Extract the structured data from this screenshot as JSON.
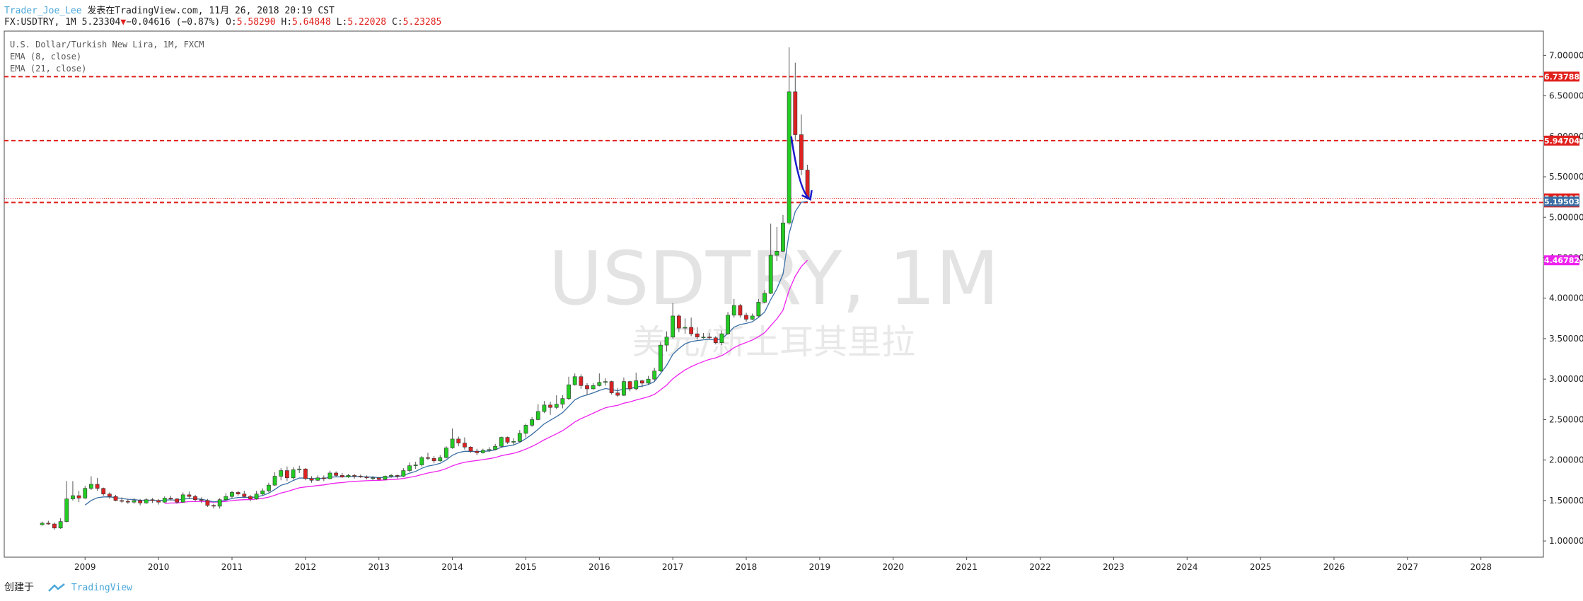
{
  "header": {
    "author": "Trader_Joe_Lee",
    "published": "发表在TradingView.com, 11月 26, 2018 20:19 CST",
    "symbol": "FX:USDTRY, 1M",
    "last": "5.23304",
    "change": "−0.04616 (−0.87%)",
    "o_label": "O:",
    "o": "5.58290",
    "h_label": "H:",
    "h": "5.64848",
    "l_label": "L:",
    "l": "5.22028",
    "c_label": "C:",
    "c": "5.23285"
  },
  "legend": {
    "title": "U.S. Dollar/Turkish New Lira, 1M, FXCM",
    "ema8": "EMA (8, close)",
    "ema21": "EMA (21, close)"
  },
  "watermark": {
    "main": "USDTRY, 1M",
    "sub": "美元/新土耳其里拉"
  },
  "footer": {
    "created": "创建于",
    "brand": "TradingView"
  },
  "colors": {
    "up": "#22cc22",
    "down": "#dd2222",
    "ema8": "#3a6ea5",
    "ema21": "#ee22ee",
    "level": "#e0201c",
    "arrow": "#1a1acc"
  },
  "chart_data": {
    "type": "candlestick",
    "xlabel": "",
    "ylabel": "",
    "x_ticks": [
      "2009",
      "2010",
      "2011",
      "2012",
      "2013",
      "2014",
      "2015",
      "2016",
      "2017",
      "2018",
      "2019",
      "2020",
      "2021",
      "2022",
      "2023",
      "2024",
      "2025",
      "2026",
      "2027",
      "2028"
    ],
    "y_ticks": [
      "1.00000",
      "1.50000",
      "2.00000",
      "2.50000",
      "3.00000",
      "3.50000",
      "4.00000",
      "4.50000",
      "5.00000",
      "5.50000",
      "6.00000",
      "6.50000",
      "7.00000"
    ],
    "ylim": [
      0.8,
      7.3
    ],
    "xlim_years": [
      2007.9,
      2028.85
    ],
    "levels": [
      {
        "value": 6.73788,
        "label": "6.73788",
        "style": "dashed"
      },
      {
        "value": 5.94704,
        "label": "5.94704",
        "style": "dashed"
      },
      {
        "value": 5.18286,
        "label": "5.18286",
        "style": "dashed"
      },
      {
        "value": 5.23285,
        "label": "5.23285",
        "style": "dotted"
      }
    ],
    "price_tags": [
      {
        "value": 5.19503,
        "label": "5.19503",
        "color": "#3a6ea5"
      },
      {
        "value": 4.46782,
        "label": "4.46782",
        "color": "#ee22ee"
      }
    ],
    "candles": [
      {
        "t": "2008-06",
        "o": 1.2,
        "h": 1.24,
        "l": 1.19,
        "c": 1.22
      },
      {
        "t": "2008-07",
        "o": 1.22,
        "h": 1.25,
        "l": 1.2,
        "c": 1.21
      },
      {
        "t": "2008-08",
        "o": 1.21,
        "h": 1.23,
        "l": 1.14,
        "c": 1.16
      },
      {
        "t": "2008-09",
        "o": 1.16,
        "h": 1.28,
        "l": 1.15,
        "c": 1.24
      },
      {
        "t": "2008-10",
        "o": 1.24,
        "h": 1.74,
        "l": 1.23,
        "c": 1.52
      },
      {
        "t": "2008-11",
        "o": 1.52,
        "h": 1.74,
        "l": 1.5,
        "c": 1.56
      },
      {
        "t": "2008-12",
        "o": 1.56,
        "h": 1.62,
        "l": 1.48,
        "c": 1.53
      },
      {
        "t": "2009-01",
        "o": 1.53,
        "h": 1.68,
        "l": 1.52,
        "c": 1.65
      },
      {
        "t": "2009-02",
        "o": 1.65,
        "h": 1.8,
        "l": 1.63,
        "c": 1.7
      },
      {
        "t": "2009-03",
        "o": 1.7,
        "h": 1.78,
        "l": 1.62,
        "c": 1.65
      },
      {
        "t": "2009-04",
        "o": 1.65,
        "h": 1.66,
        "l": 1.56,
        "c": 1.58
      },
      {
        "t": "2009-05",
        "o": 1.58,
        "h": 1.6,
        "l": 1.52,
        "c": 1.55
      },
      {
        "t": "2009-06",
        "o": 1.55,
        "h": 1.57,
        "l": 1.49,
        "c": 1.5
      },
      {
        "t": "2009-07",
        "o": 1.5,
        "h": 1.54,
        "l": 1.47,
        "c": 1.49
      },
      {
        "t": "2009-08",
        "o": 1.49,
        "h": 1.52,
        "l": 1.46,
        "c": 1.48
      },
      {
        "t": "2009-09",
        "o": 1.48,
        "h": 1.53,
        "l": 1.46,
        "c": 1.5
      },
      {
        "t": "2009-10",
        "o": 1.5,
        "h": 1.52,
        "l": 1.44,
        "c": 1.47
      },
      {
        "t": "2009-11",
        "o": 1.47,
        "h": 1.53,
        "l": 1.46,
        "c": 1.51
      },
      {
        "t": "2009-12",
        "o": 1.51,
        "h": 1.53,
        "l": 1.47,
        "c": 1.5
      },
      {
        "t": "2010-01",
        "o": 1.5,
        "h": 1.52,
        "l": 1.45,
        "c": 1.48
      },
      {
        "t": "2010-02",
        "o": 1.48,
        "h": 1.55,
        "l": 1.47,
        "c": 1.53
      },
      {
        "t": "2010-03",
        "o": 1.53,
        "h": 1.56,
        "l": 1.5,
        "c": 1.52
      },
      {
        "t": "2010-04",
        "o": 1.52,
        "h": 1.53,
        "l": 1.46,
        "c": 1.48
      },
      {
        "t": "2010-05",
        "o": 1.48,
        "h": 1.6,
        "l": 1.47,
        "c": 1.57
      },
      {
        "t": "2010-06",
        "o": 1.57,
        "h": 1.61,
        "l": 1.52,
        "c": 1.55
      },
      {
        "t": "2010-07",
        "o": 1.55,
        "h": 1.57,
        "l": 1.49,
        "c": 1.51
      },
      {
        "t": "2010-08",
        "o": 1.51,
        "h": 1.54,
        "l": 1.47,
        "c": 1.5
      },
      {
        "t": "2010-09",
        "o": 1.5,
        "h": 1.52,
        "l": 1.42,
        "c": 1.44
      },
      {
        "t": "2010-10",
        "o": 1.44,
        "h": 1.46,
        "l": 1.4,
        "c": 1.43
      },
      {
        "t": "2010-11",
        "o": 1.43,
        "h": 1.53,
        "l": 1.4,
        "c": 1.51
      },
      {
        "t": "2010-12",
        "o": 1.51,
        "h": 1.59,
        "l": 1.5,
        "c": 1.55
      },
      {
        "t": "2011-01",
        "o": 1.55,
        "h": 1.62,
        "l": 1.53,
        "c": 1.6
      },
      {
        "t": "2011-02",
        "o": 1.6,
        "h": 1.62,
        "l": 1.56,
        "c": 1.58
      },
      {
        "t": "2011-03",
        "o": 1.58,
        "h": 1.62,
        "l": 1.53,
        "c": 1.55
      },
      {
        "t": "2011-04",
        "o": 1.55,
        "h": 1.57,
        "l": 1.49,
        "c": 1.52
      },
      {
        "t": "2011-05",
        "o": 1.52,
        "h": 1.62,
        "l": 1.51,
        "c": 1.58
      },
      {
        "t": "2011-06",
        "o": 1.58,
        "h": 1.65,
        "l": 1.56,
        "c": 1.62
      },
      {
        "t": "2011-07",
        "o": 1.62,
        "h": 1.72,
        "l": 1.6,
        "c": 1.69
      },
      {
        "t": "2011-08",
        "o": 1.69,
        "h": 1.85,
        "l": 1.68,
        "c": 1.8
      },
      {
        "t": "2011-09",
        "o": 1.8,
        "h": 1.9,
        "l": 1.75,
        "c": 1.87
      },
      {
        "t": "2011-10",
        "o": 1.87,
        "h": 1.92,
        "l": 1.74,
        "c": 1.78
      },
      {
        "t": "2011-11",
        "o": 1.78,
        "h": 1.91,
        "l": 1.76,
        "c": 1.88
      },
      {
        "t": "2011-12",
        "o": 1.88,
        "h": 1.93,
        "l": 1.84,
        "c": 1.89
      },
      {
        "t": "2012-01",
        "o": 1.89,
        "h": 1.9,
        "l": 1.75,
        "c": 1.77
      },
      {
        "t": "2012-02",
        "o": 1.77,
        "h": 1.8,
        "l": 1.72,
        "c": 1.75
      },
      {
        "t": "2012-03",
        "o": 1.75,
        "h": 1.81,
        "l": 1.74,
        "c": 1.78
      },
      {
        "t": "2012-04",
        "o": 1.78,
        "h": 1.81,
        "l": 1.74,
        "c": 1.77
      },
      {
        "t": "2012-05",
        "o": 1.77,
        "h": 1.87,
        "l": 1.76,
        "c": 1.84
      },
      {
        "t": "2012-06",
        "o": 1.84,
        "h": 1.86,
        "l": 1.79,
        "c": 1.81
      },
      {
        "t": "2012-07",
        "o": 1.81,
        "h": 1.84,
        "l": 1.78,
        "c": 1.79
      },
      {
        "t": "2012-08",
        "o": 1.79,
        "h": 1.83,
        "l": 1.78,
        "c": 1.81
      },
      {
        "t": "2012-09",
        "o": 1.81,
        "h": 1.83,
        "l": 1.77,
        "c": 1.8
      },
      {
        "t": "2012-10",
        "o": 1.8,
        "h": 1.82,
        "l": 1.78,
        "c": 1.79
      },
      {
        "t": "2012-11",
        "o": 1.79,
        "h": 1.81,
        "l": 1.76,
        "c": 1.78
      },
      {
        "t": "2012-12",
        "o": 1.78,
        "h": 1.8,
        "l": 1.75,
        "c": 1.78
      },
      {
        "t": "2013-01",
        "o": 1.78,
        "h": 1.79,
        "l": 1.75,
        "c": 1.76
      },
      {
        "t": "2013-02",
        "o": 1.76,
        "h": 1.81,
        "l": 1.75,
        "c": 1.8
      },
      {
        "t": "2013-03",
        "o": 1.8,
        "h": 1.83,
        "l": 1.78,
        "c": 1.81
      },
      {
        "t": "2013-04",
        "o": 1.81,
        "h": 1.82,
        "l": 1.77,
        "c": 1.8
      },
      {
        "t": "2013-05",
        "o": 1.8,
        "h": 1.9,
        "l": 1.79,
        "c": 1.87
      },
      {
        "t": "2013-06",
        "o": 1.87,
        "h": 1.97,
        "l": 1.85,
        "c": 1.93
      },
      {
        "t": "2013-07",
        "o": 1.93,
        "h": 1.98,
        "l": 1.89,
        "c": 1.94
      },
      {
        "t": "2013-08",
        "o": 1.94,
        "h": 2.05,
        "l": 1.92,
        "c": 2.03
      },
      {
        "t": "2013-09",
        "o": 2.03,
        "h": 2.09,
        "l": 2.0,
        "c": 2.02
      },
      {
        "t": "2013-10",
        "o": 2.02,
        "h": 2.05,
        "l": 1.96,
        "c": 1.99
      },
      {
        "t": "2013-11",
        "o": 1.99,
        "h": 2.06,
        "l": 1.98,
        "c": 2.03
      },
      {
        "t": "2013-12",
        "o": 2.03,
        "h": 2.17,
        "l": 2.02,
        "c": 2.15
      },
      {
        "t": "2014-01",
        "o": 2.15,
        "h": 2.39,
        "l": 2.14,
        "c": 2.26
      },
      {
        "t": "2014-02",
        "o": 2.26,
        "h": 2.29,
        "l": 2.17,
        "c": 2.21
      },
      {
        "t": "2014-03",
        "o": 2.21,
        "h": 2.28,
        "l": 2.13,
        "c": 2.16
      },
      {
        "t": "2014-04",
        "o": 2.16,
        "h": 2.17,
        "l": 2.09,
        "c": 2.11
      },
      {
        "t": "2014-05",
        "o": 2.11,
        "h": 2.14,
        "l": 2.06,
        "c": 2.09
      },
      {
        "t": "2014-06",
        "o": 2.09,
        "h": 2.14,
        "l": 2.08,
        "c": 2.12
      },
      {
        "t": "2014-07",
        "o": 2.12,
        "h": 2.16,
        "l": 2.1,
        "c": 2.13
      },
      {
        "t": "2014-08",
        "o": 2.13,
        "h": 2.2,
        "l": 2.12,
        "c": 2.17
      },
      {
        "t": "2014-09",
        "o": 2.17,
        "h": 2.29,
        "l": 2.15,
        "c": 2.28
      },
      {
        "t": "2014-10",
        "o": 2.28,
        "h": 2.29,
        "l": 2.2,
        "c": 2.22
      },
      {
        "t": "2014-11",
        "o": 2.22,
        "h": 2.27,
        "l": 2.18,
        "c": 2.23
      },
      {
        "t": "2014-12",
        "o": 2.23,
        "h": 2.37,
        "l": 2.22,
        "c": 2.33
      },
      {
        "t": "2015-01",
        "o": 2.33,
        "h": 2.45,
        "l": 2.28,
        "c": 2.43
      },
      {
        "t": "2015-02",
        "o": 2.43,
        "h": 2.53,
        "l": 2.41,
        "c": 2.5
      },
      {
        "t": "2015-03",
        "o": 2.5,
        "h": 2.69,
        "l": 2.49,
        "c": 2.6
      },
      {
        "t": "2015-04",
        "o": 2.6,
        "h": 2.73,
        "l": 2.58,
        "c": 2.68
      },
      {
        "t": "2015-05",
        "o": 2.68,
        "h": 2.72,
        "l": 2.56,
        "c": 2.65
      },
      {
        "t": "2015-06",
        "o": 2.65,
        "h": 2.8,
        "l": 2.63,
        "c": 2.69
      },
      {
        "t": "2015-07",
        "o": 2.69,
        "h": 2.8,
        "l": 2.64,
        "c": 2.76
      },
      {
        "t": "2015-08",
        "o": 2.76,
        "h": 3.03,
        "l": 2.74,
        "c": 2.93
      },
      {
        "t": "2015-09",
        "o": 2.93,
        "h": 3.07,
        "l": 2.92,
        "c": 3.03
      },
      {
        "t": "2015-10",
        "o": 3.03,
        "h": 3.06,
        "l": 2.88,
        "c": 2.92
      },
      {
        "t": "2015-11",
        "o": 2.92,
        "h": 2.95,
        "l": 2.8,
        "c": 2.88
      },
      {
        "t": "2015-12",
        "o": 2.88,
        "h": 2.95,
        "l": 2.87,
        "c": 2.92
      },
      {
        "t": "2016-01",
        "o": 2.92,
        "h": 3.07,
        "l": 2.91,
        "c": 2.96
      },
      {
        "t": "2016-02",
        "o": 2.96,
        "h": 3.01,
        "l": 2.92,
        "c": 2.97
      },
      {
        "t": "2016-03",
        "o": 2.97,
        "h": 2.98,
        "l": 2.81,
        "c": 2.83
      },
      {
        "t": "2016-04",
        "o": 2.83,
        "h": 2.89,
        "l": 2.78,
        "c": 2.8
      },
      {
        "t": "2016-05",
        "o": 2.8,
        "h": 3.02,
        "l": 2.79,
        "c": 2.97
      },
      {
        "t": "2016-06",
        "o": 2.97,
        "h": 2.98,
        "l": 2.85,
        "c": 2.88
      },
      {
        "t": "2016-07",
        "o": 2.88,
        "h": 3.08,
        "l": 2.86,
        "c": 2.98
      },
      {
        "t": "2016-08",
        "o": 2.98,
        "h": 2.99,
        "l": 2.9,
        "c": 2.95
      },
      {
        "t": "2016-09",
        "o": 2.95,
        "h": 3.04,
        "l": 2.93,
        "c": 3.0
      },
      {
        "t": "2016-10",
        "o": 3.0,
        "h": 3.14,
        "l": 2.98,
        "c": 3.1
      },
      {
        "t": "2016-11",
        "o": 3.1,
        "h": 3.46,
        "l": 3.09,
        "c": 3.42
      },
      {
        "t": "2016-12",
        "o": 3.42,
        "h": 3.59,
        "l": 3.34,
        "c": 3.52
      },
      {
        "t": "2017-01",
        "o": 3.52,
        "h": 3.94,
        "l": 3.5,
        "c": 3.78
      },
      {
        "t": "2017-02",
        "o": 3.78,
        "h": 3.8,
        "l": 3.58,
        "c": 3.63
      },
      {
        "t": "2017-03",
        "o": 3.63,
        "h": 3.75,
        "l": 3.56,
        "c": 3.64
      },
      {
        "t": "2017-04",
        "o": 3.64,
        "h": 3.76,
        "l": 3.53,
        "c": 3.56
      },
      {
        "t": "2017-05",
        "o": 3.56,
        "h": 3.64,
        "l": 3.49,
        "c": 3.52
      },
      {
        "t": "2017-06",
        "o": 3.52,
        "h": 3.57,
        "l": 3.5,
        "c": 3.52
      },
      {
        "t": "2017-07",
        "o": 3.52,
        "h": 3.57,
        "l": 3.49,
        "c": 3.51
      },
      {
        "t": "2017-08",
        "o": 3.51,
        "h": 3.53,
        "l": 3.43,
        "c": 3.45
      },
      {
        "t": "2017-09",
        "o": 3.45,
        "h": 3.6,
        "l": 3.42,
        "c": 3.56
      },
      {
        "t": "2017-10",
        "o": 3.56,
        "h": 3.83,
        "l": 3.55,
        "c": 3.79
      },
      {
        "t": "2017-11",
        "o": 3.79,
        "h": 3.99,
        "l": 3.76,
        "c": 3.91
      },
      {
        "t": "2017-12",
        "o": 3.91,
        "h": 3.93,
        "l": 3.76,
        "c": 3.79
      },
      {
        "t": "2018-01",
        "o": 3.79,
        "h": 3.82,
        "l": 3.71,
        "c": 3.74
      },
      {
        "t": "2018-02",
        "o": 3.74,
        "h": 3.81,
        "l": 3.73,
        "c": 3.78
      },
      {
        "t": "2018-03",
        "o": 3.78,
        "h": 3.99,
        "l": 3.77,
        "c": 3.95
      },
      {
        "t": "2018-04",
        "o": 3.95,
        "h": 4.1,
        "l": 3.94,
        "c": 4.06
      },
      {
        "t": "2018-05",
        "o": 4.06,
        "h": 4.92,
        "l": 4.05,
        "c": 4.53
      },
      {
        "t": "2018-06",
        "o": 4.53,
        "h": 4.88,
        "l": 4.46,
        "c": 4.58
      },
      {
        "t": "2018-07",
        "o": 4.58,
        "h": 5.03,
        "l": 4.57,
        "c": 4.93
      },
      {
        "t": "2018-08",
        "o": 4.93,
        "h": 7.1,
        "l": 4.91,
        "c": 6.55
      },
      {
        "t": "2018-09",
        "o": 6.55,
        "h": 6.91,
        "l": 5.94,
        "c": 6.02
      },
      {
        "t": "2018-10",
        "o": 6.02,
        "h": 6.27,
        "l": 5.52,
        "c": 5.59
      },
      {
        "t": "2018-11",
        "o": 5.5829,
        "h": 5.64848,
        "l": 5.22028,
        "c": 5.23285
      }
    ]
  }
}
